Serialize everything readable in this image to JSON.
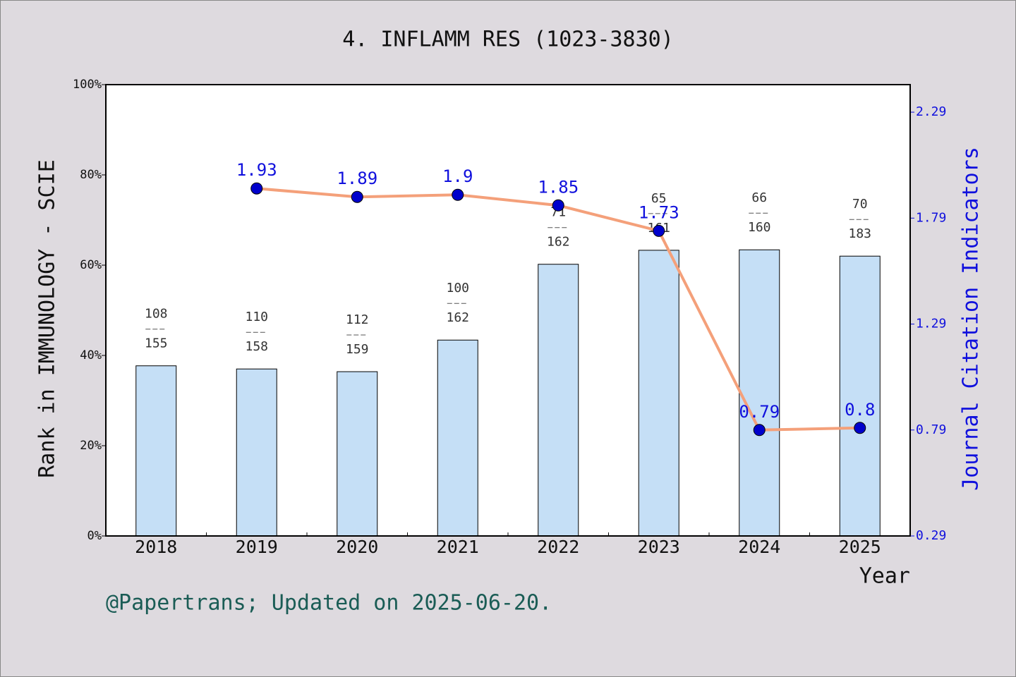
{
  "chart_data": {
    "type": "bar-line",
    "title": "4. INFLAMM RES (1023-3830)",
    "x_label": "Year",
    "y_label": "Rank in IMMUNOLOGY - SCIE",
    "y2_label": "Journal Citation Indicators",
    "footer": "@Papertrans; Updated on 2025-06-20.",
    "categories": [
      "2018",
      "2019",
      "2020",
      "2021",
      "2022",
      "2023",
      "2024",
      "2025"
    ],
    "ylim": [
      0,
      100
    ],
    "yticks": [
      {
        "value": 0,
        "label": "0%"
      },
      {
        "value": 20,
        "label": "20%"
      },
      {
        "value": 40,
        "label": "40%"
      },
      {
        "value": 60,
        "label": "60%"
      },
      {
        "value": 80,
        "label": "80%"
      },
      {
        "value": 100,
        "label": "100%"
      }
    ],
    "y2lim": [
      0.29,
      2.42
    ],
    "y2ticks": [
      0.29,
      0.79,
      1.29,
      1.79,
      2.29
    ],
    "series": [
      {
        "type": "bar",
        "color": "#c5dff6",
        "values": [
          37.7,
          37.0,
          36.4,
          43.4,
          60.2,
          63.3,
          63.4,
          62.0
        ],
        "ranks": [
          108,
          110,
          112,
          100,
          71,
          65,
          66,
          70
        ],
        "totals": [
          155,
          158,
          159,
          162,
          162,
          161,
          160,
          183
        ]
      },
      {
        "type": "line",
        "axis": "y2",
        "color": "#f4a07a",
        "marker_color": "#0000cc",
        "values": [
          null,
          1.93,
          1.89,
          1.9,
          1.85,
          1.73,
          0.79,
          0.8
        ]
      }
    ]
  }
}
